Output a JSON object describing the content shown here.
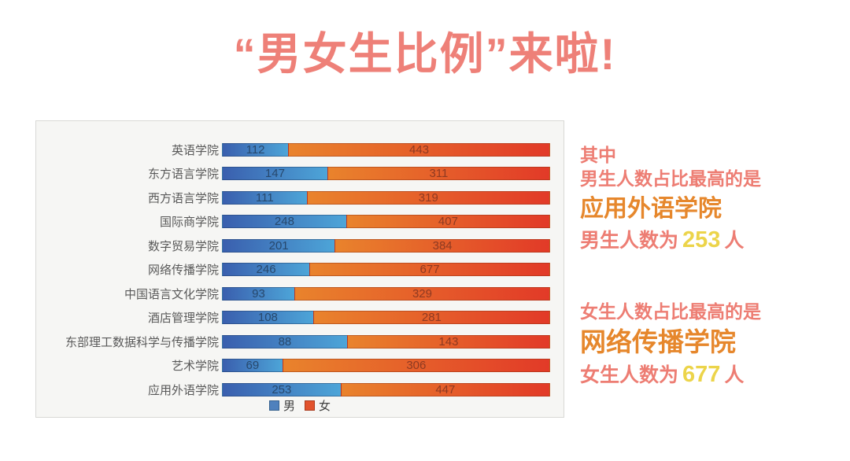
{
  "page": {
    "title": "“男女生比例”来啦!",
    "title_color": "#ee8078",
    "background": "#ffffff"
  },
  "chart_data": {
    "type": "bar",
    "subtype": "100-percent-stacked-horizontal",
    "title": "",
    "xlabel": "",
    "ylabel": "",
    "grid": false,
    "axes_visible": false,
    "legend_position": "bottom-center",
    "panel_background": "#f6f6f4",
    "categories": [
      "英语学院",
      "东方语言学院",
      "西方语言学院",
      "国际商学院",
      "数字贸易学院",
      "网络传播学院",
      "中国语言文化学院",
      "酒店管理学院",
      "东部理工数据科学与传播学院",
      "艺术学院",
      "应用外语学院"
    ],
    "series": [
      {
        "name": "男",
        "values": [
          112,
          147,
          111,
          248,
          201,
          246,
          93,
          108,
          88,
          69,
          253
        ],
        "gradient_start": "#3a5fae",
        "gradient_end": "#4da5d8",
        "value_label_color": "#27486d",
        "legend_swatch_color": "#4f81bd"
      },
      {
        "name": "女",
        "values": [
          443,
          311,
          319,
          407,
          384,
          677,
          329,
          281,
          143,
          306,
          447
        ],
        "gradient_start": "#e9832c",
        "gradient_end": "#e23a28",
        "value_label_color": "#8e3a22",
        "legend_swatch_color": "#e2532d"
      }
    ]
  },
  "annotations": {
    "intro": "其中",
    "male_line1": "男生人数占比最高的是",
    "male_college": "应用外语学院",
    "male_prefix": "男生人数为",
    "male_value": "253",
    "male_suffix": "人",
    "female_line1": "女生人数占比最高的是",
    "female_college": "网络传播学院",
    "female_prefix": "女生人数为",
    "female_value": "677",
    "female_suffix": "人",
    "text_color": "#ed7d73",
    "college_color": "#e6872c",
    "number_color": "#ecd44a"
  }
}
